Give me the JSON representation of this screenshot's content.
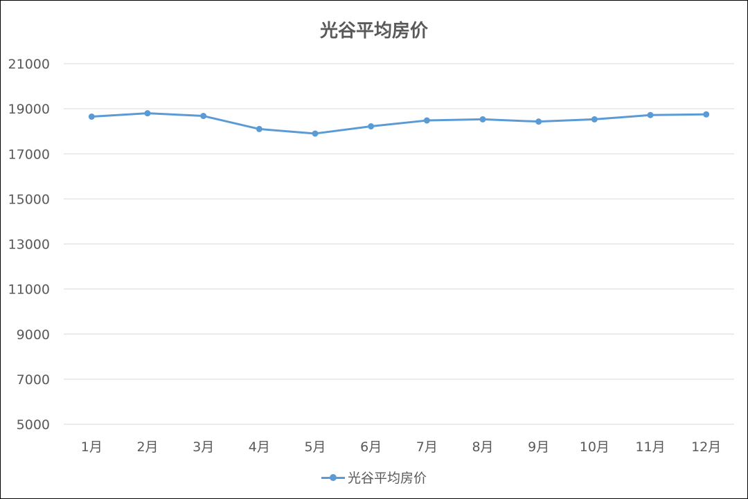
{
  "chart_data": {
    "type": "line",
    "title": "光谷平均房价",
    "xlabel": "",
    "ylabel": "",
    "categories": [
      "1月",
      "2月",
      "3月",
      "4月",
      "5月",
      "6月",
      "7月",
      "8月",
      "9月",
      "10月",
      "11月",
      "12月"
    ],
    "series": [
      {
        "name": "光谷平均房价",
        "color": "#5b9bd5",
        "values": [
          18650,
          18800,
          18680,
          18100,
          17900,
          18220,
          18480,
          18530,
          18430,
          18530,
          18720,
          18750
        ]
      }
    ],
    "yticks": [
      "5000",
      "7000",
      "9000",
      "11000",
      "13000",
      "15000",
      "17000",
      "19000",
      "21000"
    ],
    "ylim": [
      5000,
      21000
    ],
    "grid": true,
    "legend_position": "bottom",
    "gridline_color": "#d9d9d9",
    "text_color": "#595959"
  }
}
